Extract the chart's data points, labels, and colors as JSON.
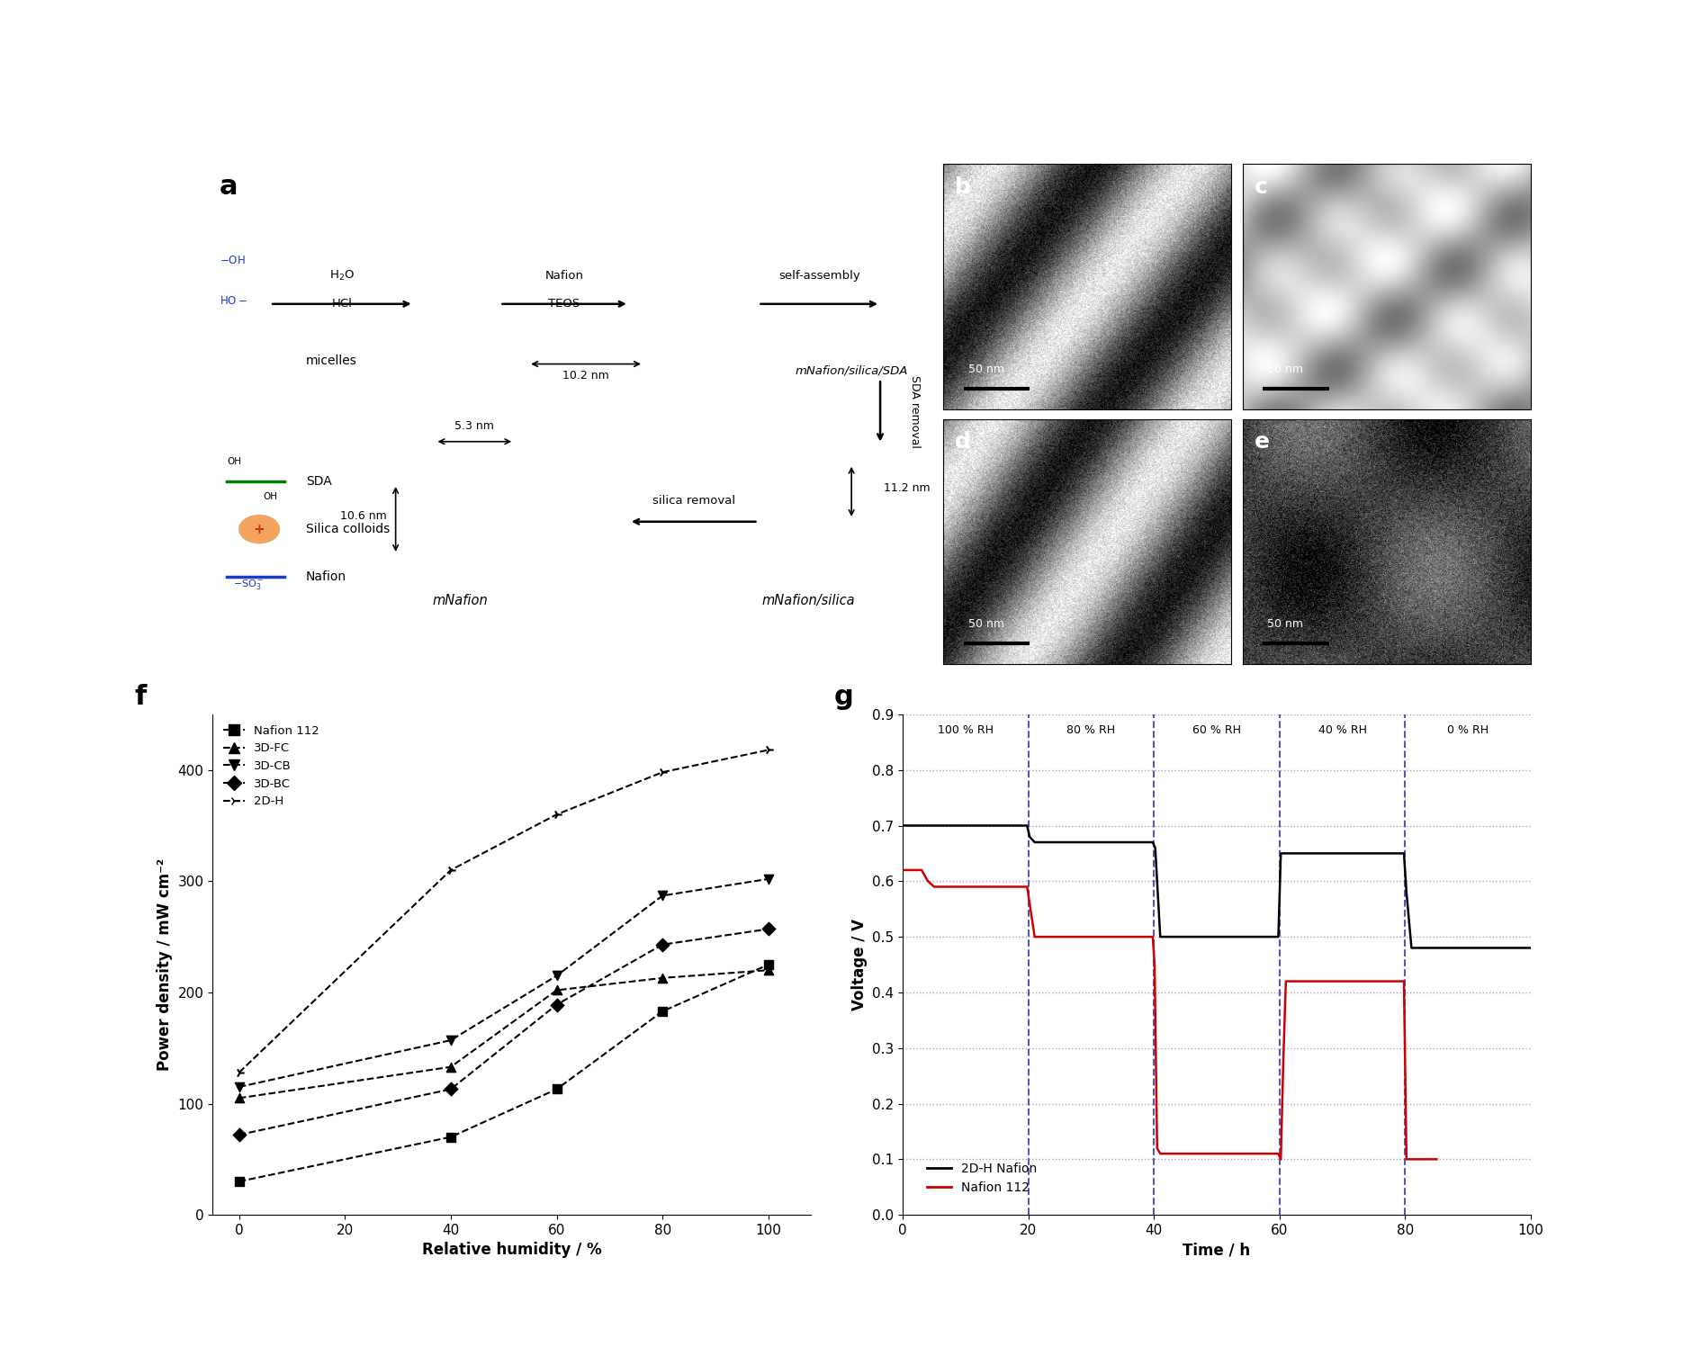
{
  "panel_f": {
    "series": {
      "Nafion 112": {
        "x": [
          0,
          40,
          60,
          80,
          100
        ],
        "y": [
          30,
          70,
          113,
          183,
          225
        ],
        "marker": "s",
        "label": "Nafion 112"
      },
      "3D-FC": {
        "x": [
          0,
          40,
          60,
          80,
          100
        ],
        "y": [
          105,
          133,
          202,
          213,
          220
        ],
        "marker": "^",
        "label": "3D-FC"
      },
      "3D-CB": {
        "x": [
          0,
          40,
          60,
          80,
          100
        ],
        "y": [
          115,
          157,
          215,
          287,
          302
        ],
        "marker": "v",
        "label": "3D-CB"
      },
      "3D-BC": {
        "x": [
          0,
          40,
          60,
          80,
          100
        ],
        "y": [
          72,
          113,
          189,
          243,
          257
        ],
        "marker": "D",
        "label": "3D-BC"
      },
      "2D-H": {
        "x": [
          0,
          40,
          60,
          80,
          100
        ],
        "y": [
          128,
          310,
          360,
          398,
          418
        ],
        "marker": "4",
        "label": "2D-H"
      }
    },
    "xlabel": "Relative humidity / %",
    "ylabel": "Power density / mW cm⁻²",
    "xlim": [
      -5,
      108
    ],
    "ylim": [
      0,
      450
    ],
    "xticks": [
      0,
      20,
      40,
      60,
      80,
      100
    ],
    "yticks": [
      0,
      100,
      200,
      300,
      400
    ],
    "panel_label": "f"
  },
  "panel_g": {
    "black_x": [
      0,
      1,
      2,
      3,
      4,
      5,
      6,
      7,
      8,
      9,
      10,
      11,
      12,
      13,
      14,
      15,
      16,
      17,
      18,
      19,
      19.8,
      20.2,
      21,
      22,
      23,
      24,
      25,
      26,
      27,
      28,
      29,
      30,
      31,
      32,
      33,
      34,
      35,
      36,
      37,
      38,
      39,
      39.8,
      40.2,
      41,
      42,
      43,
      44,
      45,
      46,
      47,
      48,
      49,
      50,
      51,
      52,
      53,
      54,
      55,
      56,
      57,
      58,
      59,
      59.8,
      60.2,
      61,
      62,
      63,
      64,
      65,
      66,
      67,
      68,
      69,
      70,
      71,
      72,
      73,
      74,
      75,
      76,
      77,
      78,
      79,
      79.8,
      80.2,
      81,
      82,
      83,
      84,
      85,
      86,
      87,
      88,
      89,
      90,
      95,
      100
    ],
    "black_y": [
      0.7,
      0.7,
      0.7,
      0.7,
      0.7,
      0.7,
      0.7,
      0.7,
      0.7,
      0.7,
      0.7,
      0.7,
      0.7,
      0.7,
      0.7,
      0.7,
      0.7,
      0.7,
      0.7,
      0.7,
      0.7,
      0.68,
      0.67,
      0.67,
      0.67,
      0.67,
      0.67,
      0.67,
      0.67,
      0.67,
      0.67,
      0.67,
      0.67,
      0.67,
      0.67,
      0.67,
      0.67,
      0.67,
      0.67,
      0.67,
      0.67,
      0.67,
      0.66,
      0.5,
      0.5,
      0.5,
      0.5,
      0.5,
      0.5,
      0.5,
      0.5,
      0.5,
      0.5,
      0.5,
      0.5,
      0.5,
      0.5,
      0.5,
      0.5,
      0.5,
      0.5,
      0.5,
      0.5,
      0.65,
      0.65,
      0.65,
      0.65,
      0.65,
      0.65,
      0.65,
      0.65,
      0.65,
      0.65,
      0.65,
      0.65,
      0.65,
      0.65,
      0.65,
      0.65,
      0.65,
      0.65,
      0.65,
      0.65,
      0.65,
      0.58,
      0.48,
      0.48,
      0.48,
      0.48,
      0.48,
      0.48,
      0.48,
      0.48,
      0.48,
      0.48,
      0.48,
      0.48
    ],
    "red_x": [
      0,
      1,
      2,
      3,
      4,
      5,
      6,
      7,
      8,
      9,
      10,
      11,
      12,
      13,
      14,
      15,
      16,
      17,
      18,
      19,
      19.8,
      20.2,
      21,
      22,
      23,
      24,
      25,
      26,
      27,
      28,
      29,
      30,
      31,
      32,
      33,
      34,
      35,
      36,
      37,
      38,
      39,
      39.8,
      40.1,
      40.5,
      41,
      42,
      43,
      44,
      45,
      46,
      47,
      48,
      49,
      50,
      51,
      52,
      53,
      54,
      55,
      56,
      57,
      58,
      59,
      59.8,
      60.2,
      60.6,
      61,
      62,
      63,
      64,
      65,
      66,
      67,
      68,
      69,
      70,
      71,
      72,
      73,
      74,
      75,
      76,
      77,
      78,
      79,
      79.8,
      80.2,
      81,
      82,
      83,
      84,
      85
    ],
    "red_y": [
      0.62,
      0.62,
      0.62,
      0.62,
      0.6,
      0.59,
      0.59,
      0.59,
      0.59,
      0.59,
      0.59,
      0.59,
      0.59,
      0.59,
      0.59,
      0.59,
      0.59,
      0.59,
      0.59,
      0.59,
      0.59,
      0.56,
      0.5,
      0.5,
      0.5,
      0.5,
      0.5,
      0.5,
      0.5,
      0.5,
      0.5,
      0.5,
      0.5,
      0.5,
      0.5,
      0.5,
      0.5,
      0.5,
      0.5,
      0.5,
      0.5,
      0.5,
      0.45,
      0.12,
      0.11,
      0.11,
      0.11,
      0.11,
      0.11,
      0.11,
      0.11,
      0.11,
      0.11,
      0.11,
      0.11,
      0.11,
      0.11,
      0.11,
      0.11,
      0.11,
      0.11,
      0.11,
      0.11,
      0.11,
      0.1,
      0.28,
      0.42,
      0.42,
      0.42,
      0.42,
      0.42,
      0.42,
      0.42,
      0.42,
      0.42,
      0.42,
      0.42,
      0.42,
      0.42,
      0.42,
      0.42,
      0.42,
      0.42,
      0.42,
      0.42,
      0.42,
      0.1,
      0.1,
      0.1,
      0.1,
      0.1,
      0.1
    ],
    "rh_labels": [
      "100 % RH",
      "80 % RH",
      "60 % RH",
      "40 % RH",
      "0 % RH"
    ],
    "rh_x": [
      10,
      30,
      50,
      70,
      90
    ],
    "vlines": [
      20,
      40,
      60,
      80
    ],
    "xlabel": "Time / h",
    "ylabel": "Voltage / V",
    "xlim": [
      0,
      100
    ],
    "ylim": [
      0.0,
      0.9
    ],
    "xticks": [
      0,
      20,
      40,
      60,
      80,
      100
    ],
    "yticks": [
      0.0,
      0.1,
      0.2,
      0.3,
      0.4,
      0.5,
      0.6,
      0.7,
      0.8,
      0.9
    ],
    "hlines": [
      0.1,
      0.2,
      0.3,
      0.4,
      0.5,
      0.6,
      0.7,
      0.8,
      0.9
    ],
    "panel_label": "g"
  }
}
